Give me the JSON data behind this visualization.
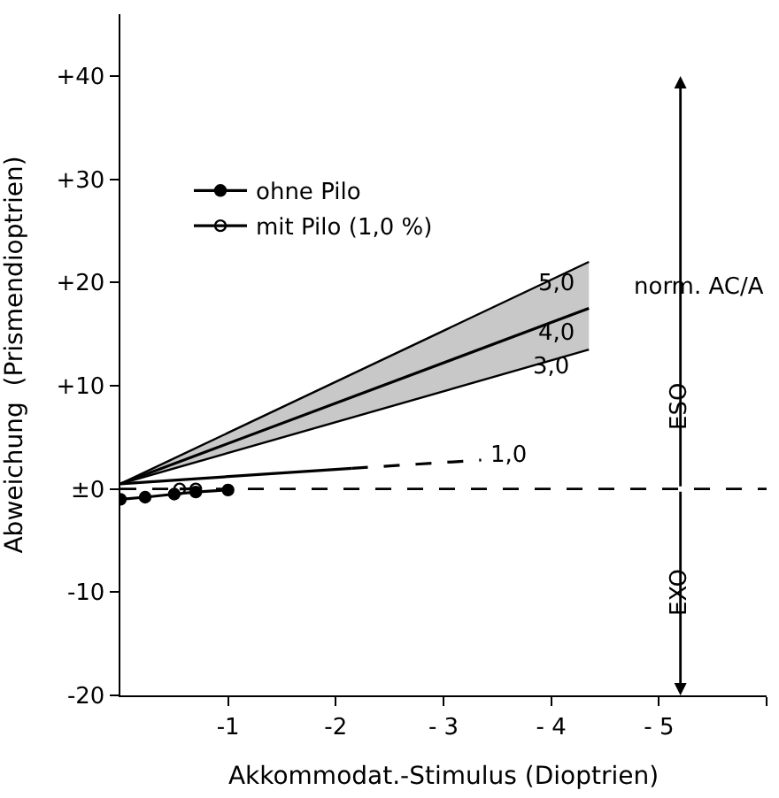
{
  "chart_data": {
    "type": "line",
    "xlabel": "Akkommodat.-Stimulus (Dioptrien)",
    "ylabel": "Abweichung  (Prismendioptrien)",
    "xlim": [
      0,
      -6
    ],
    "ylim": [
      -20,
      46
    ],
    "xticks": [
      {
        "value": -1,
        "label": "-1"
      },
      {
        "value": -2,
        "label": "-2"
      },
      {
        "value": -3,
        "label": "- 3"
      },
      {
        "value": -4,
        "label": "- 4"
      },
      {
        "value": -5,
        "label": "- 5"
      },
      {
        "value": -6,
        "label": null
      }
    ],
    "yticks": [
      {
        "value": -20,
        "label": "-20"
      },
      {
        "value": -10,
        "label": "-10"
      },
      {
        "value": 0,
        "label": "±0"
      },
      {
        "value": 10,
        "label": "+10"
      },
      {
        "value": 20,
        "label": "+20"
      },
      {
        "value": 30,
        "label": "+30"
      },
      {
        "value": 40,
        "label": "+40"
      }
    ],
    "legend": "top left",
    "series": [
      {
        "color": "#000000",
        "x": [
          0,
          -4.35
        ],
        "values": [
          0.5,
          17.5
        ],
        "lower": [
          0.5,
          13.5
        ],
        "upper": [
          0.5,
          22
        ],
        "marker": "none",
        "line_style": "solid"
      },
      {
        "color": "#000000",
        "x": [
          0,
          -2.15
        ],
        "values": [
          0.5,
          2
        ],
        "marker": "none",
        "line_style": "solid"
      },
      {
        "color": "#000000",
        "x": [
          -2.15,
          -3.35
        ],
        "values": [
          2,
          2.8
        ],
        "marker": "none",
        "line_style": "dashed"
      },
      {
        "name": "ohne Pilo",
        "color": "#000000",
        "x": [
          0,
          -0.23,
          -0.5,
          -0.7,
          -1.0
        ],
        "values": [
          -1,
          -0.8,
          -0.5,
          -0.3,
          -0.1
        ],
        "marker": "circle",
        "line_style": "solid"
      },
      {
        "name": "mit Pilo (1,0 %)",
        "color": "#000000",
        "x": [
          -0.55,
          -0.7
        ],
        "values": [
          0,
          0
        ],
        "marker": "circle-open",
        "line_style": "solid"
      }
    ],
    "ref_lines": [
      {
        "axis": "y",
        "value": 0,
        "color": "#000000",
        "line_style": "dashed"
      }
    ],
    "annotations": [
      "5,0",
      "4,0",
      "3,0",
      "1,0",
      "norm. AC/A",
      "ESO",
      "EXO"
    ]
  }
}
